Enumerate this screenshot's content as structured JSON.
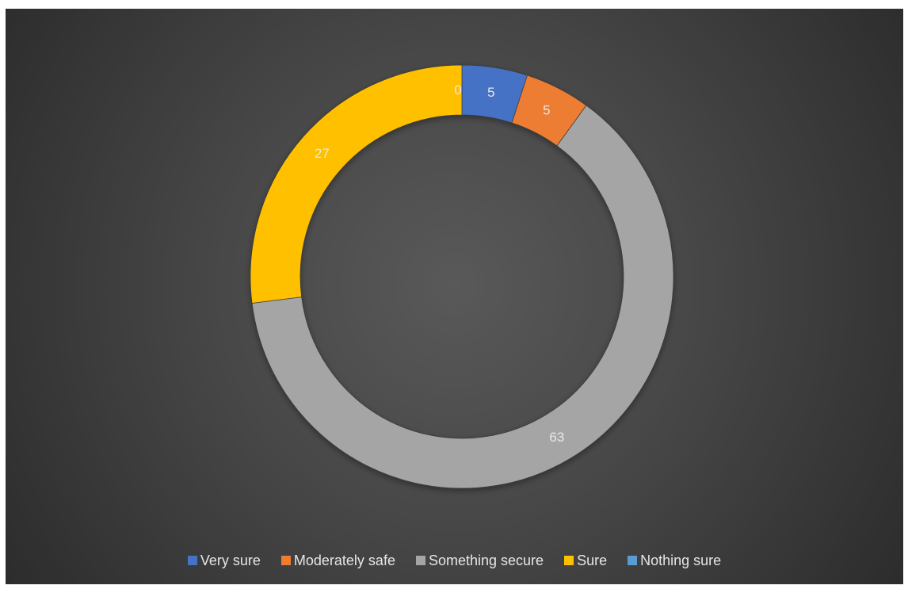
{
  "chart_data": {
    "type": "donut",
    "title": "",
    "categories": [
      "Very sure",
      "Moderately safe",
      "Something secure",
      "Sure",
      "Nothing sure"
    ],
    "values": [
      5,
      5,
      63,
      27,
      0
    ],
    "colors": [
      "#4472c4",
      "#ed7d31",
      "#a5a5a5",
      "#ffc000",
      "#5b9bd5"
    ],
    "data_labels": [
      "5",
      "5",
      "63",
      "27",
      "0"
    ],
    "legend_position": "bottom",
    "background": "#404040"
  }
}
